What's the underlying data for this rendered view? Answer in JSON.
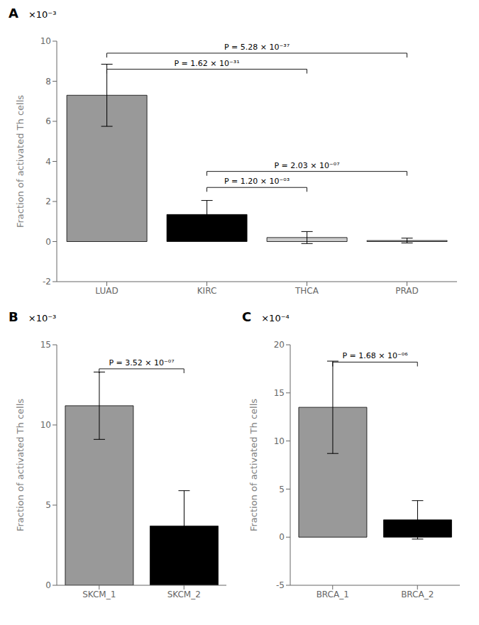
{
  "chart_data": [
    {
      "type": "bar",
      "title": "A",
      "subtitle": "×10⁻³",
      "categories": [
        "LUAD",
        "KIRC",
        "THCA",
        "PRAD"
      ],
      "values": [
        7.3,
        1.35,
        0.2,
        0.05
      ],
      "errors": [
        1.55,
        0.7,
        0.3,
        0.12
      ],
      "colors": [
        "#999999",
        "#000000",
        "#cccccc",
        "#cccccc"
      ],
      "ylim": [
        -2,
        10
      ],
      "yticks": [
        -2,
        0,
        2,
        4,
        6,
        8,
        10
      ],
      "ylabel": "Fraction of activated Th cells",
      "annotations": [
        {
          "x1": "LUAD",
          "x2": "THCA",
          "y": 8.6,
          "label": "P = 1.62 × 10⁻³¹"
        },
        {
          "x1": "LUAD",
          "x2": "PRAD",
          "y": 9.4,
          "label": "P = 5.28 × 10⁻³⁷"
        },
        {
          "x1": "KIRC",
          "x2": "THCA",
          "y": 2.7,
          "label": "P = 1.20 × 10⁻⁰³"
        },
        {
          "x1": "KIRC",
          "x2": "PRAD",
          "y": 3.5,
          "label": "P = 2.03 × 10⁻⁰⁷"
        }
      ]
    },
    {
      "type": "bar",
      "title": "B",
      "subtitle": "×10⁻³",
      "categories": [
        "SKCM_1",
        "SKCM_2"
      ],
      "values": [
        11.2,
        3.7
      ],
      "errors": [
        2.1,
        2.2
      ],
      "colors": [
        "#999999",
        "#000000"
      ],
      "ylim": [
        0,
        15
      ],
      "yticks": [
        0,
        5,
        10,
        15
      ],
      "ylabel": "Fraction of activated Th cells",
      "annotations": [
        {
          "x1": "SKCM_1",
          "x2": "SKCM_2",
          "y": 13.5,
          "label": "P = 3.52 × 10⁻⁰⁷"
        }
      ]
    },
    {
      "type": "bar",
      "title": "C",
      "subtitle": "×10⁻⁴",
      "categories": [
        "BRCA_1",
        "BRCA_2"
      ],
      "values": [
        13.5,
        1.8
      ],
      "errors": [
        4.8,
        2.0
      ],
      "colors": [
        "#999999",
        "#000000"
      ],
      "ylim": [
        -5,
        20
      ],
      "yticks": [
        -5,
        0,
        5,
        10,
        15,
        20
      ],
      "ylabel": "Fraction of activated Th cells",
      "annotations": [
        {
          "x1": "BRCA_1",
          "x2": "BRCA_2",
          "y": 18.2,
          "label": "P = 1.68 × 10⁻⁰⁶"
        }
      ]
    }
  ]
}
